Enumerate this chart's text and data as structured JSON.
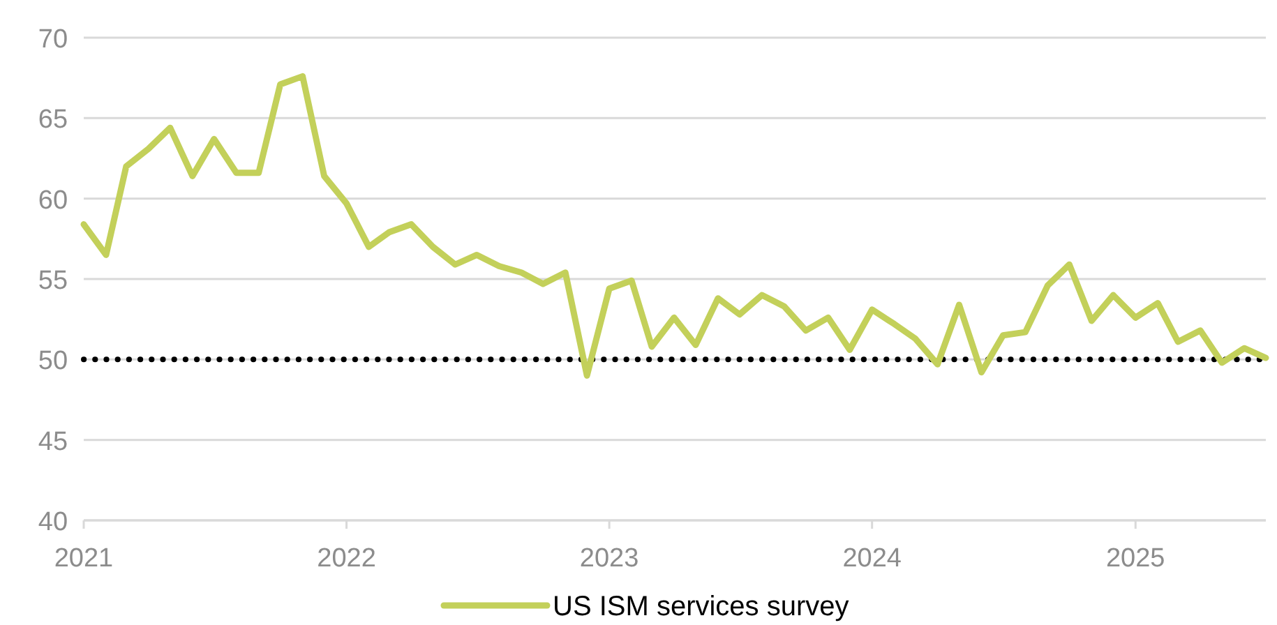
{
  "chart_data": {
    "type": "line",
    "x": [
      "2021-01",
      "2021-02",
      "2021-03",
      "2021-04",
      "2021-05",
      "2021-06",
      "2021-07",
      "2021-08",
      "2021-09",
      "2021-10",
      "2021-11",
      "2021-12",
      "2022-01",
      "2022-02",
      "2022-03",
      "2022-04",
      "2022-05",
      "2022-06",
      "2022-07",
      "2022-08",
      "2022-09",
      "2022-10",
      "2022-11",
      "2022-12",
      "2023-01",
      "2023-02",
      "2023-03",
      "2023-04",
      "2023-05",
      "2023-06",
      "2023-07",
      "2023-08",
      "2023-09",
      "2023-10",
      "2023-11",
      "2023-12",
      "2024-01",
      "2024-02",
      "2024-03",
      "2024-04",
      "2024-05",
      "2024-06",
      "2024-07",
      "2024-08",
      "2024-09",
      "2024-10",
      "2024-11",
      "2024-12",
      "2025-01",
      "2025-02",
      "2025-03",
      "2025-04",
      "2025-05",
      "2025-06",
      "2025-07"
    ],
    "series": [
      {
        "name": "US ISM services survey",
        "color": "#c3d05a",
        "values": [
          58.4,
          56.5,
          62.0,
          63.1,
          64.4,
          61.4,
          63.7,
          61.6,
          61.6,
          67.1,
          67.6,
          61.4,
          59.7,
          57.0,
          57.9,
          58.4,
          57.0,
          55.9,
          56.5,
          55.8,
          55.4,
          54.7,
          55.4,
          49.0,
          54.4,
          54.9,
          50.8,
          52.6,
          50.9,
          53.8,
          52.8,
          54.0,
          53.3,
          51.8,
          52.6,
          50.6,
          53.1,
          52.2,
          51.3,
          49.7,
          53.4,
          49.2,
          51.5,
          51.7,
          54.6,
          55.9,
          52.4,
          54.0,
          52.6,
          53.5,
          51.1,
          51.8,
          49.8,
          50.7,
          50.1
        ]
      }
    ],
    "xlim": [
      "2021-01",
      "2025-07"
    ],
    "xticks": [
      {
        "value": "2021-01",
        "label": "2021"
      },
      {
        "value": "2022-01",
        "label": "2022"
      },
      {
        "value": "2023-01",
        "label": "2023"
      },
      {
        "value": "2024-01",
        "label": "2024"
      },
      {
        "value": "2025-01",
        "label": "2025"
      }
    ],
    "ylim": [
      40,
      70
    ],
    "yticks": [
      40,
      45,
      50,
      55,
      60,
      65,
      70
    ],
    "grid": "y",
    "legend": "bottom",
    "line_style": "solid",
    "ref_lines": [
      {
        "axis": "y",
        "value": 50,
        "color": "#000000",
        "line_style": "dotted"
      }
    ]
  }
}
